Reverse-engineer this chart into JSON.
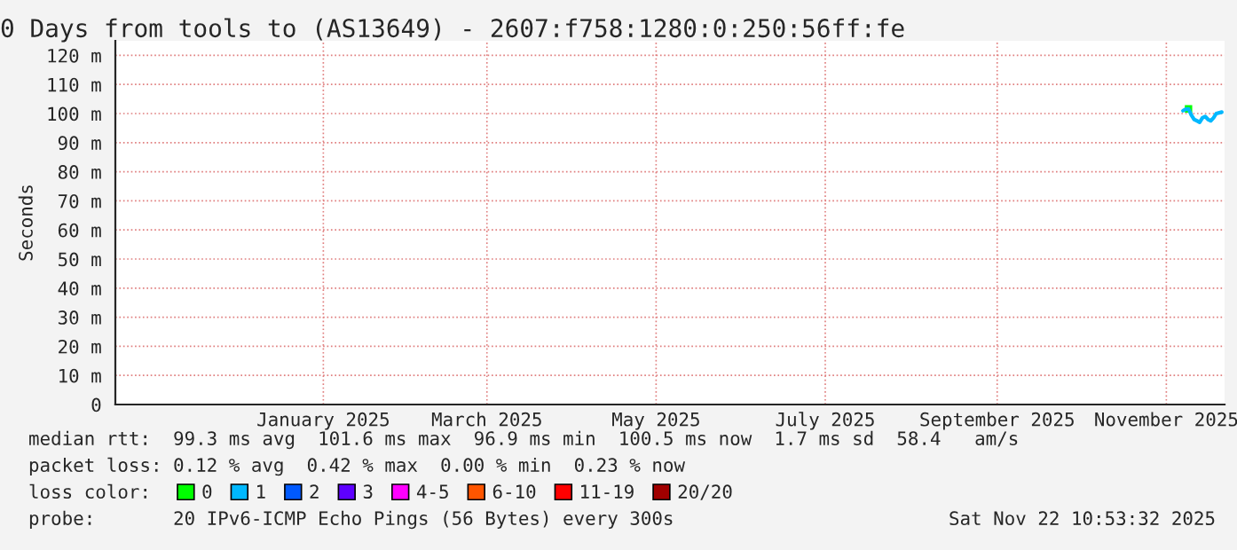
{
  "chart_data": {
    "type": "line",
    "title": "0 Days from tools to (AS13649) - 2607:f758:1280:0:250:56ff:fe",
    "ylabel": "Seconds",
    "x": [
      "2025-11-07",
      "2025-11-08",
      "2025-11-09",
      "2025-11-10",
      "2025-11-11",
      "2025-11-12",
      "2025-11-13",
      "2025-11-14",
      "2025-11-15",
      "2025-11-16",
      "2025-11-17",
      "2025-11-18",
      "2025-11-19",
      "2025-11-21"
    ],
    "series": [
      {
        "name": "0",
        "color": "#00ff00",
        "marker": "square",
        "values": [
          null,
          null,
          101.6,
          null,
          null,
          null,
          null,
          null,
          null,
          null,
          null,
          null,
          null,
          null
        ]
      },
      {
        "name": "1",
        "color": "#00b8ff",
        "values": [
          101,
          101.5,
          101.6,
          99.5,
          98,
          97.5,
          97,
          98.5,
          99,
          98,
          97.5,
          98.5,
          100,
          100.5
        ]
      },
      {
        "name": "2",
        "color": "#0059ff",
        "values": [
          null,
          null,
          null,
          null,
          null,
          null,
          null,
          null,
          null,
          null,
          null,
          null,
          null,
          null
        ]
      },
      {
        "name": "3",
        "color": "#5e00ff",
        "values": [
          null,
          null,
          null,
          null,
          null,
          null,
          null,
          null,
          null,
          null,
          null,
          null,
          null,
          null
        ]
      },
      {
        "name": "4-5",
        "color": "#ff00ff",
        "values": [
          null,
          null,
          null,
          null,
          null,
          null,
          null,
          null,
          null,
          null,
          null,
          null,
          null,
          null
        ]
      },
      {
        "name": "6-10",
        "color": "#ff5500",
        "values": [
          null,
          null,
          null,
          null,
          null,
          null,
          null,
          null,
          null,
          null,
          null,
          null,
          null,
          null
        ]
      },
      {
        "name": "11-19",
        "color": "#ff0000",
        "values": [
          null,
          null,
          null,
          null,
          null,
          null,
          null,
          null,
          null,
          null,
          null,
          null,
          null,
          null
        ]
      },
      {
        "name": "20/20",
        "color": "#a10000",
        "values": [
          null,
          null,
          null,
          null,
          null,
          null,
          null,
          null,
          null,
          null,
          null,
          null,
          null,
          null
        ]
      }
    ],
    "legend_title": "loss color:",
    "legend": "bottom",
    "xlim": [
      "2024-10-18",
      "2025-11-22"
    ],
    "xticks": [
      {
        "value": "2025-01-01",
        "label": "January 2025"
      },
      {
        "value": "2025-03-01",
        "label": "March 2025"
      },
      {
        "value": "2025-05-01",
        "label": "May 2025"
      },
      {
        "value": "2025-07-01",
        "label": "July 2025"
      },
      {
        "value": "2025-09-01",
        "label": "September 2025"
      },
      {
        "value": "2025-11-01",
        "label": "November 2025"
      }
    ],
    "ylim": [
      0,
      125
    ],
    "yticks": [
      0,
      {
        "value": 10,
        "label": "10 m"
      },
      {
        "value": 20,
        "label": "20 m"
      },
      {
        "value": 30,
        "label": "30 m"
      },
      {
        "value": 40,
        "label": "40 m"
      },
      {
        "value": 50,
        "label": "50 m"
      },
      {
        "value": 60,
        "label": "60 m"
      },
      {
        "value": 70,
        "label": "70 m"
      },
      {
        "value": 80,
        "label": "80 m"
      },
      {
        "value": 90,
        "label": "90 m"
      },
      {
        "value": 100,
        "label": "100 m"
      },
      {
        "value": 110,
        "label": "110 m"
      },
      {
        "value": 120,
        "label": "120 m"
      }
    ],
    "grid": true,
    "annotations": [
      "median rtt:  99.3 ms avg  101.6 ms max  96.9 ms min  100.5 ms now  1.7 ms sd  58.4   am/s",
      "packet loss: 0.12 % avg  0.42 % max  0.00 % min  0.23 % now",
      "probe:       20 IPv6-ICMP Echo Pings (56 Bytes) every 300s",
      "Sat Nov 22 10:53:32 2025"
    ]
  }
}
